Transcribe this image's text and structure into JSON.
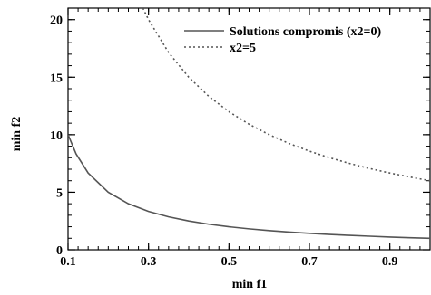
{
  "chart_data": {
    "type": "line",
    "title": "",
    "xlabel": "min f1",
    "ylabel": "min f2",
    "xlim": [
      0.1,
      1.0
    ],
    "ylim": [
      0,
      21
    ],
    "x_ticks": [
      0.1,
      0.3,
      0.5,
      0.7,
      0.9
    ],
    "x_tick_labels": [
      "0.1",
      "0.3",
      "0.5",
      "0.7",
      "0.9"
    ],
    "y_ticks": [
      0,
      5,
      10,
      15,
      20
    ],
    "y_tick_labels": [
      "0",
      "5",
      "10",
      "15",
      "20"
    ],
    "grid": false,
    "legend_position": "top-right",
    "series": [
      {
        "name": "Solutions compromis (x2=0)",
        "style": "solid",
        "color": "#555555",
        "x": [
          0.1,
          0.12,
          0.15,
          0.2,
          0.25,
          0.3,
          0.35,
          0.4,
          0.45,
          0.5,
          0.55,
          0.6,
          0.65,
          0.7,
          0.75,
          0.8,
          0.85,
          0.9,
          0.95,
          1.0
        ],
        "y": [
          10.0,
          8.33,
          6.67,
          5.0,
          4.0,
          3.33,
          2.86,
          2.5,
          2.22,
          2.0,
          1.82,
          1.67,
          1.54,
          1.43,
          1.33,
          1.25,
          1.18,
          1.11,
          1.05,
          1.0
        ]
      },
      {
        "name": "x2=5",
        "style": "dotted",
        "color": "#555555",
        "x": [
          0.286,
          0.3,
          0.35,
          0.4,
          0.45,
          0.5,
          0.55,
          0.6,
          0.65,
          0.7,
          0.75,
          0.8,
          0.85,
          0.9,
          0.95,
          1.0
        ],
        "y": [
          21.0,
          20.0,
          17.14,
          15.0,
          13.33,
          12.0,
          10.91,
          10.0,
          9.23,
          8.57,
          8.0,
          7.5,
          7.06,
          6.67,
          6.32,
          6.0
        ]
      }
    ]
  }
}
